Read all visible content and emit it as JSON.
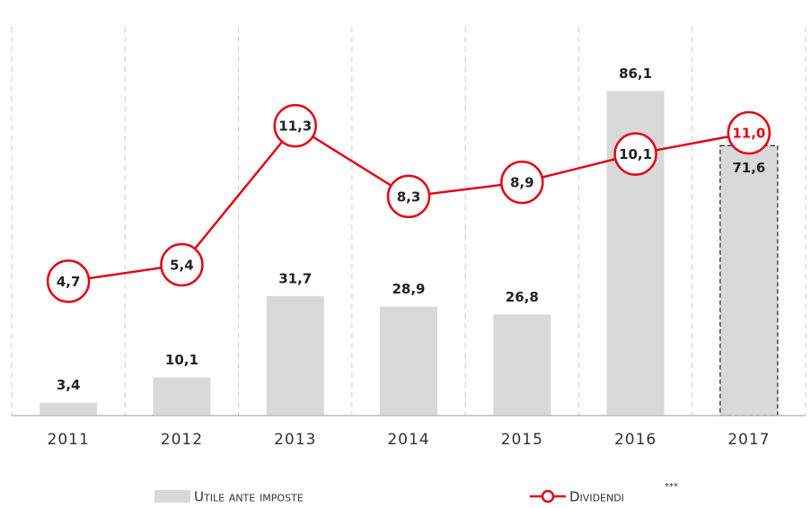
{
  "chart_data": {
    "type": "bar_line",
    "categories": [
      "2011",
      "2012",
      "2013",
      "2014",
      "2015",
      "2016",
      "2017"
    ],
    "series": [
      {
        "name": "Utile ante imposte",
        "color": "#d9d9d9",
        "values": [
          3.4,
          10.1,
          31.7,
          28.9,
          26.8,
          86.1,
          71.6
        ],
        "value_labels": [
          "3,4",
          "10,1",
          "31,7",
          "28,9",
          "26,8",
          "86,1",
          "71,6"
        ]
      },
      {
        "name": "Dividendi",
        "color": "#e30613",
        "axis": "y2",
        "values": [
          4.7,
          5.4,
          11.3,
          8.3,
          8.9,
          10.1,
          11.0
        ],
        "value_labels": [
          "4,7",
          "5,4",
          "11,3",
          "8,3",
          "8,9",
          "10,1",
          "11,0"
        ]
      }
    ],
    "legend_note": "***",
    "ylim": [
      0,
      100
    ],
    "y2lim": [
      -1,
      15
    ],
    "grid": true
  }
}
